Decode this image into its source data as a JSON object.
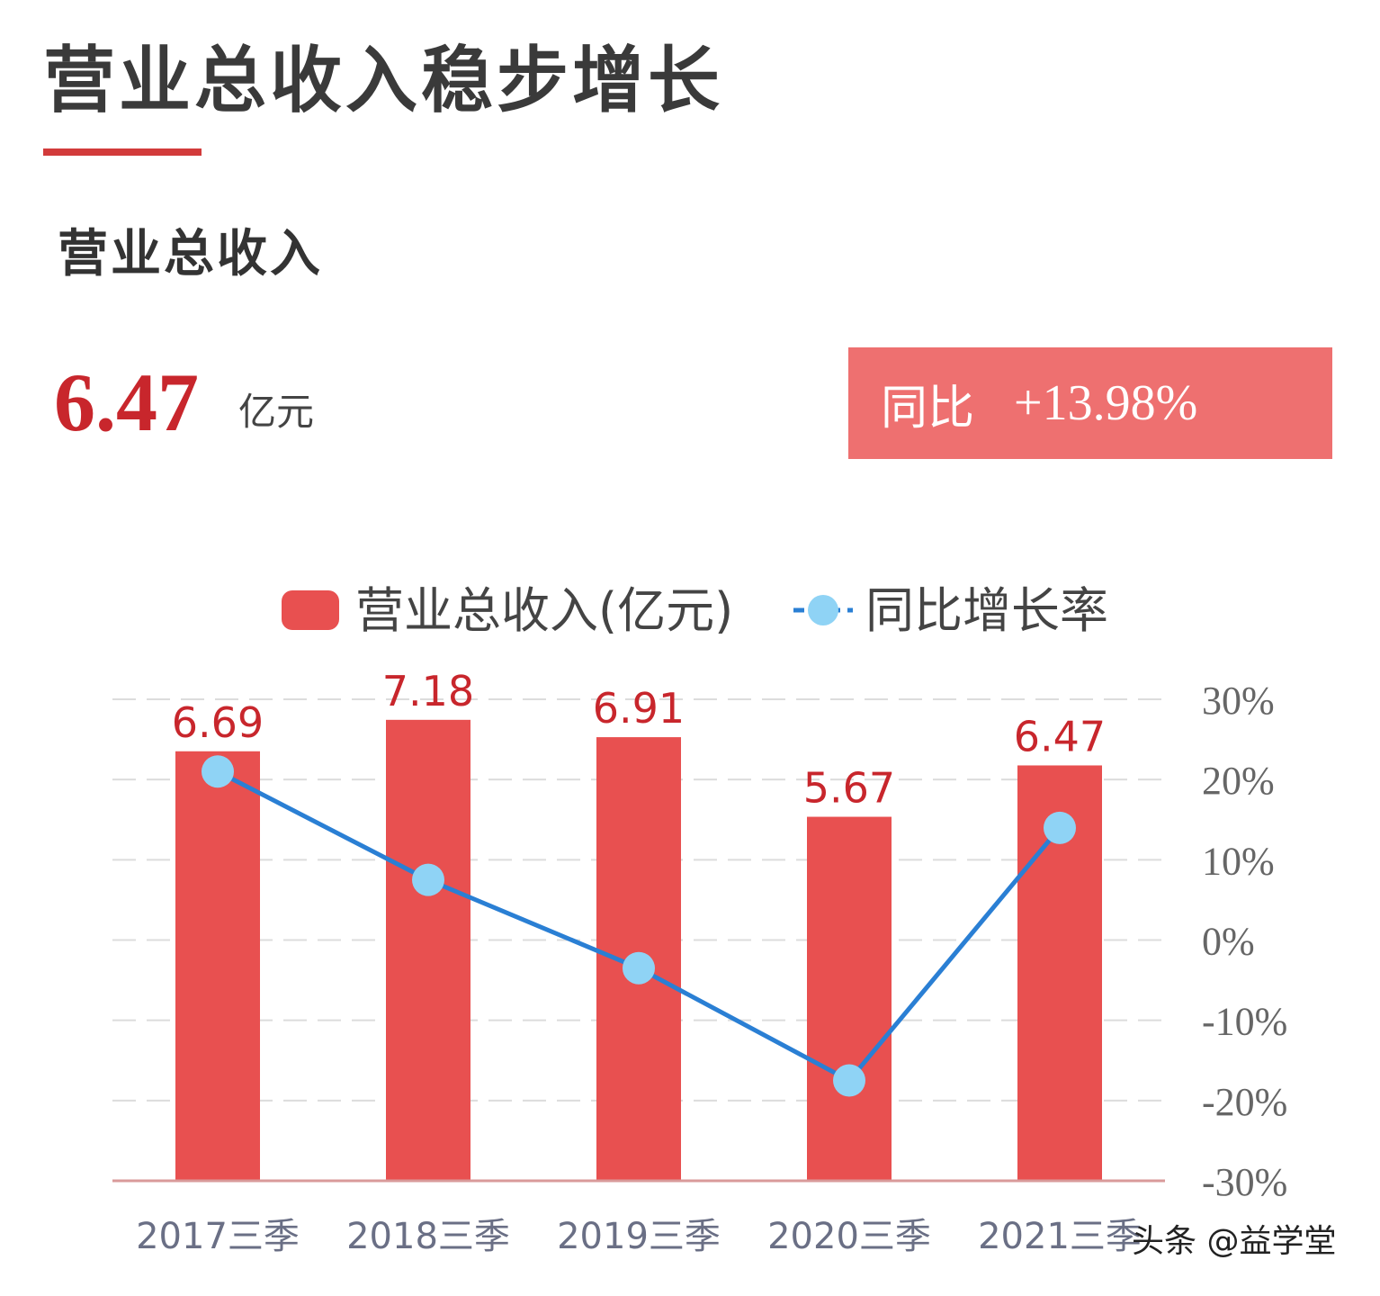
{
  "header": {
    "title": "营业总收入稳步增长",
    "section_label": "营业总收入",
    "value": "6.47",
    "unit": "亿元",
    "yoy_label": "同比",
    "yoy_value": "+13.98%"
  },
  "watermark": "头条 @益学堂",
  "colors": {
    "bar": "#e85050",
    "bar_label": "#c8262c",
    "line": "#2a7fd4",
    "marker": "#8fd3f5",
    "badge": "#ee7070",
    "accent": "#d23b3b"
  },
  "chart_data": {
    "type": "bar",
    "categories": [
      "2017三季",
      "2018三季",
      "2019三季",
      "2020三季",
      "2021三季"
    ],
    "series": [
      {
        "name": "营业总收入(亿元)",
        "type": "bar",
        "axis": "left",
        "values": [
          6.69,
          7.18,
          6.91,
          5.67,
          6.47
        ],
        "data_labels": [
          "6.69",
          "7.18",
          "6.91",
          "5.67",
          "6.47"
        ]
      },
      {
        "name": "同比增长率",
        "type": "line",
        "axis": "right",
        "values": [
          21,
          7.5,
          -3.5,
          -17.5,
          13.98
        ]
      }
    ],
    "y_left_range": [
      0,
      7.5
    ],
    "y_right_range": [
      -30,
      30
    ],
    "y_right_ticks": [
      "30%",
      "20%",
      "10%",
      "0%",
      "-10%",
      "-20%",
      "-30%"
    ],
    "y_right_tick_values": [
      30,
      20,
      10,
      0,
      -10,
      -20,
      -30
    ],
    "grid": true,
    "legend_position": "top-center"
  }
}
